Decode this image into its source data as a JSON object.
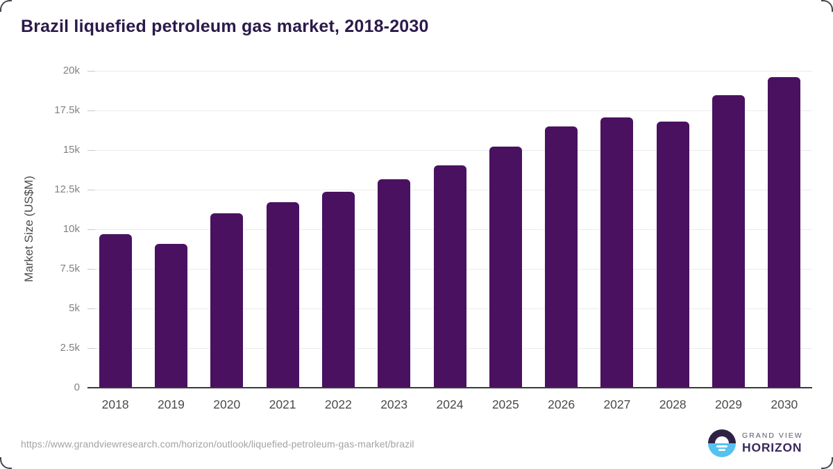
{
  "colors": {
    "bar": "#4a1160",
    "title": "#2b1a4a",
    "grid": "#ebebeb",
    "tick": "#c9c9c9",
    "axis": "#3a3a3a",
    "tick-label": "#828282",
    "x-label": "#4a4a4a",
    "axis-label": "#4a4a4a",
    "url": "#a3a3a3",
    "corner": "#4a4550",
    "logo-dark": "#2e2244",
    "logo-blue": "#56c2ef",
    "logo-grand": "#5b5668",
    "logo-horizon": "#3a2a5e"
  },
  "chart_data": {
    "type": "bar",
    "title": "Brazil liquefied petroleum gas market, 2018-2030",
    "xlabel": "",
    "ylabel": "Market Size (US$M)",
    "categories": [
      "2018",
      "2019",
      "2020",
      "2021",
      "2022",
      "2023",
      "2024",
      "2025",
      "2026",
      "2027",
      "2028",
      "2029",
      "2030"
    ],
    "values": [
      9700,
      9100,
      11000,
      11700,
      12350,
      13150,
      14050,
      15200,
      16500,
      17050,
      16800,
      18450,
      19600
    ],
    "ylim": [
      0,
      20000
    ],
    "y_tick_values": [
      0,
      2500,
      5000,
      7500,
      10000,
      12500,
      15000,
      17500,
      20000
    ],
    "y_tick_labels": [
      "0",
      "2.5k",
      "5k",
      "7.5k",
      "10k",
      "12.5k",
      "15k",
      "17.5k",
      "20k"
    ],
    "grid": true,
    "legend": false,
    "bar_color": "#4a1160"
  },
  "footer": {
    "source_url": "https://www.grandviewresearch.com/horizon/outlook/liquefied-petroleum-gas-market/brazil",
    "logo_line1": "GRAND VIEW",
    "logo_line2": "HORIZON"
  }
}
